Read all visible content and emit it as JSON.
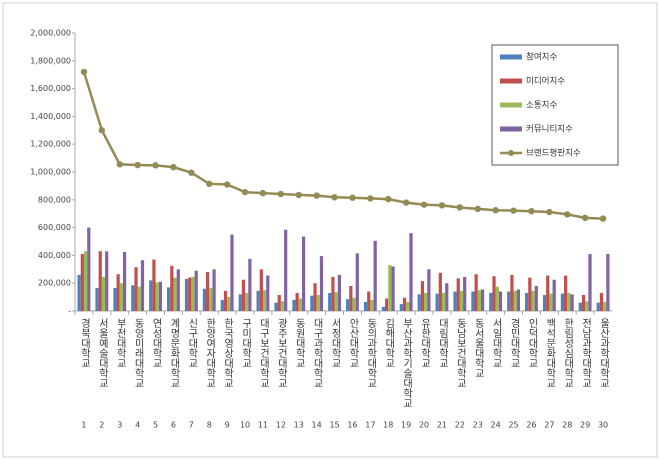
{
  "chart_data": {
    "type": "bar",
    "categories": [
      "경북대학교",
      "서울예술대학교",
      "부천대학교",
      "동양미래대학교",
      "연성대학교",
      "계명문화대학교",
      "신구대학교",
      "한양여자대학교",
      "한국영상대학교",
      "구미대학교",
      "대구보건대학교",
      "광주보건대학교",
      "동원대학교",
      "대구과학대학교",
      "서정대학교",
      "안산대학교",
      "동의과학대학교",
      "김해대학교",
      "부산과학기술대학교",
      "유한대학교",
      "대림대학교",
      "동남보건대학교",
      "동서울대학교",
      "서일대학교",
      "경민대학교",
      "인덕대학교",
      "백석문화대학교",
      "한림성심대학교",
      "전남과학대학교",
      "울산과학대학교"
    ],
    "rank_labels": [
      1,
      2,
      3,
      4,
      5,
      6,
      7,
      8,
      9,
      10,
      11,
      12,
      13,
      14,
      15,
      16,
      17,
      18,
      19,
      20,
      21,
      22,
      23,
      24,
      25,
      26,
      27,
      28,
      29,
      30
    ],
    "series": [
      {
        "name": "참여지수",
        "color": "#4f81bd",
        "type": "bar",
        "values": [
          260000,
          165000,
          165000,
          185000,
          220000,
          170000,
          230000,
          160000,
          80000,
          120000,
          145000,
          60000,
          80000,
          110000,
          130000,
          85000,
          65000,
          30000,
          50000,
          120000,
          125000,
          140000,
          140000,
          130000,
          140000,
          130000,
          115000,
          125000,
          60000,
          60000
        ]
      },
      {
        "name": "미디어지수",
        "color": "#c0504d",
        "type": "bar",
        "values": [
          410000,
          430000,
          265000,
          315000,
          370000,
          325000,
          240000,
          280000,
          145000,
          225000,
          300000,
          115000,
          130000,
          200000,
          245000,
          180000,
          140000,
          90000,
          95000,
          215000,
          275000,
          235000,
          265000,
          250000,
          260000,
          240000,
          255000,
          255000,
          115000,
          130000
        ]
      },
      {
        "name": "소통지수",
        "color": "#9bbb59",
        "type": "bar",
        "values": [
          430000,
          245000,
          200000,
          175000,
          205000,
          240000,
          245000,
          165000,
          100000,
          130000,
          150000,
          70000,
          90000,
          115000,
          135000,
          95000,
          80000,
          330000,
          65000,
          130000,
          130000,
          145000,
          150000,
          175000,
          145000,
          145000,
          125000,
          130000,
          70000,
          65000
        ]
      },
      {
        "name": "커뮤니티지수",
        "color": "#8064a2",
        "type": "bar",
        "values": [
          600000,
          430000,
          425000,
          365000,
          210000,
          300000,
          290000,
          300000,
          550000,
          375000,
          255000,
          585000,
          535000,
          395000,
          260000,
          415000,
          505000,
          320000,
          560000,
          300000,
          200000,
          245000,
          155000,
          140000,
          155000,
          180000,
          225000,
          120000,
          410000,
          410000
        ]
      },
      {
        "name": "브랜드평판지수",
        "color": "#948a54",
        "type": "line",
        "values": [
          1720000,
          1300000,
          1055000,
          1050000,
          1048000,
          1035000,
          995000,
          915000,
          910000,
          855000,
          848000,
          842000,
          835000,
          830000,
          818000,
          815000,
          810000,
          805000,
          780000,
          765000,
          760000,
          745000,
          735000,
          725000,
          722000,
          718000,
          712000,
          695000,
          670000,
          665000
        ]
      }
    ],
    "ylim": [
      0,
      2000000
    ],
    "yticks": [
      {
        "value": 0,
        "label": "-"
      },
      {
        "value": 200000,
        "label": "200,000"
      },
      {
        "value": 400000,
        "label": "400,000"
      },
      {
        "value": 600000,
        "label": "600,000"
      },
      {
        "value": 800000,
        "label": "800,000"
      },
      {
        "value": 1000000,
        "label": "1,000,000"
      },
      {
        "value": 1200000,
        "label": "1,200,000"
      },
      {
        "value": 1400000,
        "label": "1,400,000"
      },
      {
        "value": 1600000,
        "label": "1,600,000"
      },
      {
        "value": 1800000,
        "label": "1,800,000"
      },
      {
        "value": 2000000,
        "label": "2,000,000"
      }
    ],
    "grid": false,
    "legend": "upper right"
  }
}
